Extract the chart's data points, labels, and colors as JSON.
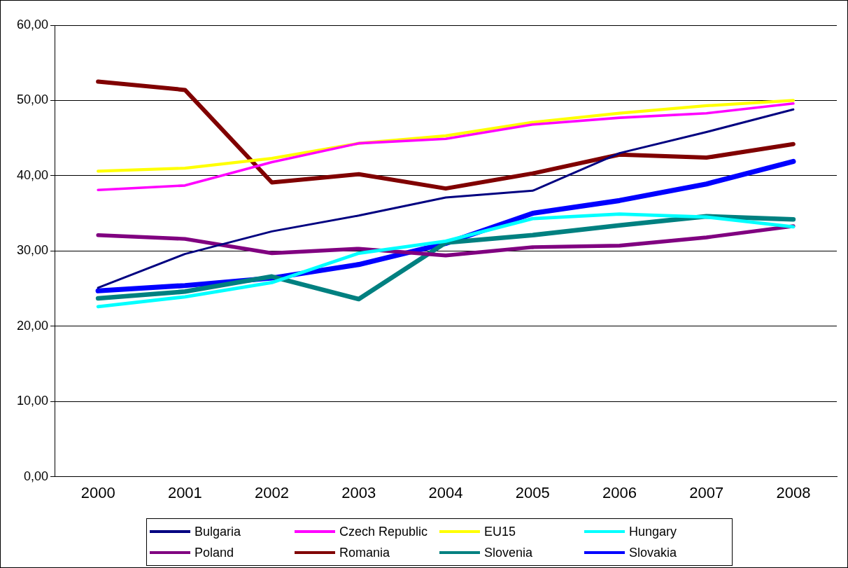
{
  "chart_data": {
    "type": "line",
    "categories": [
      "2000",
      "2001",
      "2002",
      "2003",
      "2004",
      "2005",
      "2006",
      "2007",
      "2008"
    ],
    "series": [
      {
        "name": "Bulgaria",
        "color": "#000080",
        "values": [
          25.1,
          29.6,
          32.6,
          34.7,
          37.1,
          38.0,
          43.0,
          45.8,
          48.8
        ]
      },
      {
        "name": "Czech Republic",
        "color": "#ff00ff",
        "values": [
          38.1,
          38.7,
          41.8,
          44.3,
          44.9,
          46.8,
          47.7,
          48.3,
          49.6
        ]
      },
      {
        "name": "EU15",
        "color": "#ffff00",
        "values": [
          40.6,
          41.0,
          42.3,
          44.3,
          45.3,
          47.1,
          48.3,
          49.3,
          50.0
        ]
      },
      {
        "name": "Hungary",
        "color": "#00ffff",
        "values": [
          22.6,
          23.9,
          25.8,
          29.7,
          31.3,
          34.3,
          34.9,
          34.5,
          33.2
        ]
      },
      {
        "name": "Poland",
        "color": "#800080",
        "values": [
          32.1,
          31.6,
          29.7,
          30.3,
          29.4,
          30.5,
          30.7,
          31.8,
          33.3
        ]
      },
      {
        "name": "Romania",
        "color": "#800000",
        "values": [
          52.5,
          51.4,
          39.1,
          40.2,
          38.3,
          40.3,
          42.8,
          42.4,
          44.2
        ]
      },
      {
        "name": "Slovenia",
        "color": "#008080",
        "values": [
          23.7,
          24.6,
          26.6,
          23.6,
          31.1,
          32.1,
          33.4,
          34.6,
          34.2
        ]
      },
      {
        "name": "Slovakia",
        "color": "#0000ff",
        "values": [
          24.7,
          25.4,
          26.4,
          28.2,
          31.0,
          35.0,
          36.7,
          38.9,
          41.9
        ]
      }
    ],
    "ylim": [
      0,
      60
    ],
    "yticks": [
      {
        "value": 0,
        "label": "0,00"
      },
      {
        "value": 10,
        "label": "10,00"
      },
      {
        "value": 20,
        "label": "20,00"
      },
      {
        "value": 30,
        "label": "30,00"
      },
      {
        "value": 40,
        "label": "40,00"
      },
      {
        "value": 50,
        "label": "50,00"
      },
      {
        "value": 60,
        "label": "60,00"
      }
    ],
    "grid": "y",
    "legend": "bottom",
    "marker": "none",
    "line_style": "solid"
  }
}
